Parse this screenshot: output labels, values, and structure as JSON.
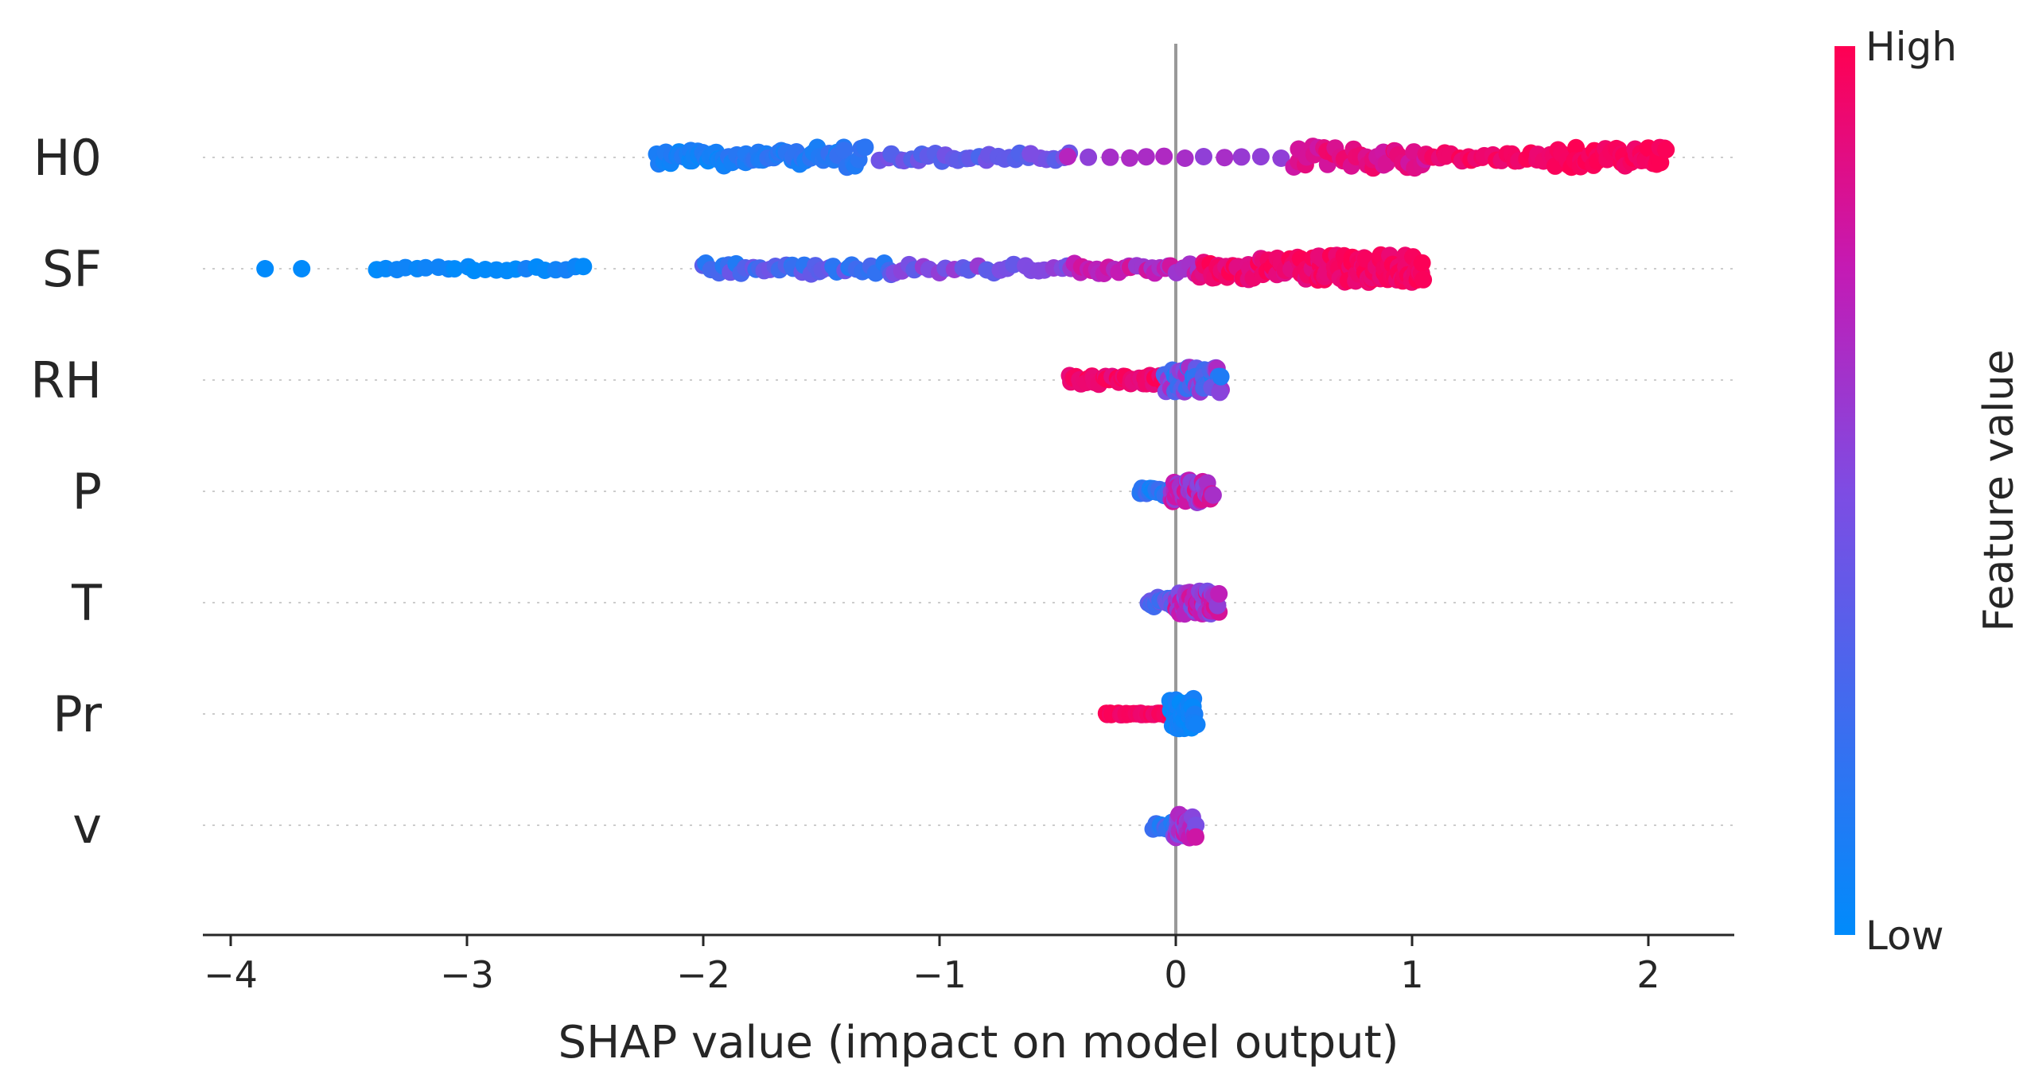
{
  "chart_data": {
    "type": "scatter",
    "subtype": "shap-beeswarm",
    "title": "",
    "xlabel": "SHAP value (impact on model output)",
    "ylabel": "",
    "xlim": [
      -4.15,
      2.35
    ],
    "xticks": [
      {
        "value": -4,
        "label": "−4"
      },
      {
        "value": -3,
        "label": "−3"
      },
      {
        "value": -2,
        "label": "−2"
      },
      {
        "value": -1,
        "label": "−1"
      },
      {
        "value": 0,
        "label": "0"
      },
      {
        "value": 1,
        "label": "1"
      },
      {
        "value": 2,
        "label": "2"
      }
    ],
    "grid": false,
    "zero_line": true,
    "colorbar": {
      "title": "Feature value",
      "high_label": "High",
      "low_label": "Low",
      "high_color": "#ff0052",
      "low_color": "#008bfb",
      "placement": "right"
    },
    "features": [
      {
        "name": "H0",
        "clusters": [
          {
            "from": -2.2,
            "to": -1.9,
            "count": 34,
            "spread": 0.22,
            "color": [
              0.02,
              0.15
            ]
          },
          {
            "from": -1.9,
            "to": -1.55,
            "count": 28,
            "spread": 0.18,
            "color": [
              0.05,
              0.2
            ]
          },
          {
            "from": -1.55,
            "to": -1.32,
            "count": 18,
            "spread": 0.28,
            "color": [
              0.08,
              0.22
            ]
          },
          {
            "from": -1.25,
            "to": -0.45,
            "count": 32,
            "spread": 0.12,
            "color": [
              0.28,
              0.5
            ]
          },
          {
            "from": -0.45,
            "to": 0.45,
            "count": 12,
            "spread": 0.03,
            "color": [
              0.55,
              0.7
            ]
          },
          {
            "from": 0.5,
            "to": 1.05,
            "count": 38,
            "spread": 0.3,
            "color": [
              0.78,
              0.95
            ]
          },
          {
            "from": 1.05,
            "to": 1.6,
            "count": 28,
            "spread": 0.12,
            "color": [
              0.9,
              1.0
            ]
          },
          {
            "from": 1.6,
            "to": 2.08,
            "count": 46,
            "spread": 0.26,
            "color": [
              0.92,
              1.0
            ]
          }
        ]
      },
      {
        "name": "SF",
        "clusters": [
          {
            "from": -3.85,
            "to": -3.7,
            "count": 2,
            "spread": 0.0,
            "color": [
              0.0,
              0.05
            ]
          },
          {
            "from": -3.38,
            "to": -2.5,
            "count": 22,
            "spread": 0.06,
            "color": [
              0.0,
              0.1
            ]
          },
          {
            "from": -2.0,
            "to": -1.2,
            "count": 40,
            "spread": 0.15,
            "color": [
              0.12,
              0.45
            ]
          },
          {
            "from": -1.2,
            "to": -0.45,
            "count": 24,
            "spread": 0.12,
            "color": [
              0.35,
              0.6
            ]
          },
          {
            "from": -0.45,
            "to": 0.1,
            "count": 30,
            "spread": 0.14,
            "color": [
              0.6,
              0.85
            ]
          },
          {
            "from": 0.1,
            "to": 0.6,
            "count": 55,
            "spread": 0.3,
            "color": [
              0.85,
              1.0
            ]
          },
          {
            "from": 0.6,
            "to": 1.05,
            "count": 80,
            "spread": 0.36,
            "color": [
              0.9,
              1.0
            ]
          }
        ]
      },
      {
        "name": "RH",
        "clusters": [
          {
            "from": -0.45,
            "to": -0.05,
            "count": 40,
            "spread": 0.12,
            "color": [
              0.88,
              1.0
            ]
          },
          {
            "from": -0.05,
            "to": 0.2,
            "count": 55,
            "spread": 0.33,
            "color": [
              0.1,
              0.7
            ]
          }
        ]
      },
      {
        "name": "P",
        "clusters": [
          {
            "from": -0.15,
            "to": -0.02,
            "count": 18,
            "spread": 0.12,
            "color": [
              0.05,
              0.3
            ]
          },
          {
            "from": -0.02,
            "to": 0.15,
            "count": 55,
            "spread": 0.3,
            "color": [
              0.5,
              0.85
            ]
          }
        ]
      },
      {
        "name": "T",
        "clusters": [
          {
            "from": -0.12,
            "to": 0.0,
            "count": 18,
            "spread": 0.14,
            "color": [
              0.2,
              0.5
            ]
          },
          {
            "from": 0.0,
            "to": 0.18,
            "count": 55,
            "spread": 0.3,
            "color": [
              0.45,
              0.85
            ]
          }
        ]
      },
      {
        "name": "Pr",
        "clusters": [
          {
            "from": -0.3,
            "to": -0.02,
            "count": 30,
            "spread": 0.02,
            "color": [
              0.92,
              1.0
            ]
          },
          {
            "from": -0.02,
            "to": 0.08,
            "count": 55,
            "spread": 0.4,
            "color": [
              0.0,
              0.1
            ]
          }
        ]
      },
      {
        "name": "v",
        "clusters": [
          {
            "from": -0.1,
            "to": 0.0,
            "count": 10,
            "spread": 0.1,
            "color": [
              0.1,
              0.35
            ]
          },
          {
            "from": 0.0,
            "to": 0.08,
            "count": 35,
            "spread": 0.34,
            "color": [
              0.45,
              0.8
            ]
          }
        ]
      }
    ]
  }
}
